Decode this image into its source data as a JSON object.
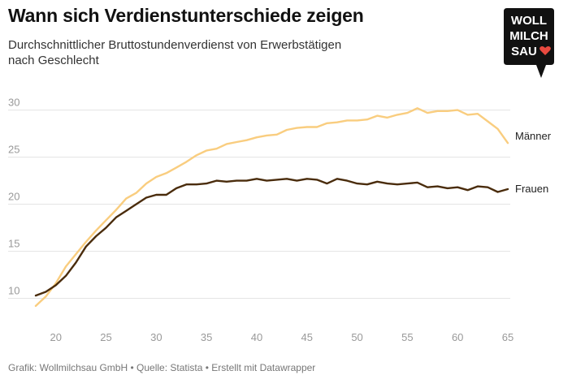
{
  "header": {
    "title": "Wann sich Verdienstunterschiede zeigen",
    "subtitle": "Durchschnittlicher Bruttostundenverdienst von Erwerbstätigen nach Geschlecht"
  },
  "logo": {
    "line1": "WOLL",
    "line2": "MILCH",
    "line3": "SAU",
    "icon": "heart-icon",
    "color": "#111111",
    "heart_color": "#e8493f"
  },
  "footer": {
    "text": "Grafik: Wollmilchsau GmbH • Quelle: Statista • Erstellt mit Datawrapper"
  },
  "chart_data": {
    "type": "line",
    "title": "Wann sich Verdienstunterschiede zeigen",
    "xlabel": "",
    "ylabel": "",
    "xlim": [
      18,
      65
    ],
    "ylim": [
      8.5,
      31
    ],
    "x_ticks": [
      20,
      25,
      30,
      35,
      40,
      45,
      50,
      55,
      60,
      65
    ],
    "y_ticks": [
      10,
      15,
      20,
      25,
      30
    ],
    "grid": "horizontal",
    "legend": "direct-labels-right",
    "x": [
      18,
      19,
      20,
      21,
      22,
      23,
      24,
      25,
      26,
      27,
      28,
      29,
      30,
      31,
      32,
      33,
      34,
      35,
      36,
      37,
      38,
      39,
      40,
      41,
      42,
      43,
      44,
      45,
      46,
      47,
      48,
      49,
      50,
      51,
      52,
      53,
      54,
      55,
      56,
      57,
      58,
      59,
      60,
      61,
      62,
      63,
      64,
      65
    ],
    "series": [
      {
        "name": "Männer",
        "color": "#f9cd7f",
        "values": [
          9.2,
          10.2,
          11.6,
          13.4,
          14.7,
          16.0,
          17.2,
          18.3,
          19.4,
          20.6,
          21.2,
          22.2,
          22.9,
          23.3,
          23.9,
          24.5,
          25.2,
          25.7,
          25.9,
          26.4,
          26.6,
          26.8,
          27.1,
          27.3,
          27.4,
          27.9,
          28.1,
          28.2,
          28.2,
          28.6,
          28.7,
          28.9,
          28.9,
          29.0,
          29.4,
          29.2,
          29.5,
          29.7,
          30.2,
          29.7,
          29.9,
          29.9,
          30.0,
          29.5,
          29.6,
          28.8,
          28.0,
          26.5
        ]
      },
      {
        "name": "Frauen",
        "color": "#4a2c0c",
        "values": [
          10.3,
          10.7,
          11.4,
          12.4,
          13.8,
          15.5,
          16.6,
          17.5,
          18.6,
          19.3,
          20.0,
          20.7,
          21.0,
          21.0,
          21.7,
          22.1,
          22.1,
          22.2,
          22.5,
          22.4,
          22.5,
          22.5,
          22.7,
          22.5,
          22.6,
          22.7,
          22.5,
          22.7,
          22.6,
          22.2,
          22.7,
          22.5,
          22.2,
          22.1,
          22.4,
          22.2,
          22.1,
          22.2,
          22.3,
          21.8,
          21.9,
          21.7,
          21.8,
          21.5,
          21.9,
          21.8,
          21.3,
          21.6
        ]
      }
    ]
  }
}
